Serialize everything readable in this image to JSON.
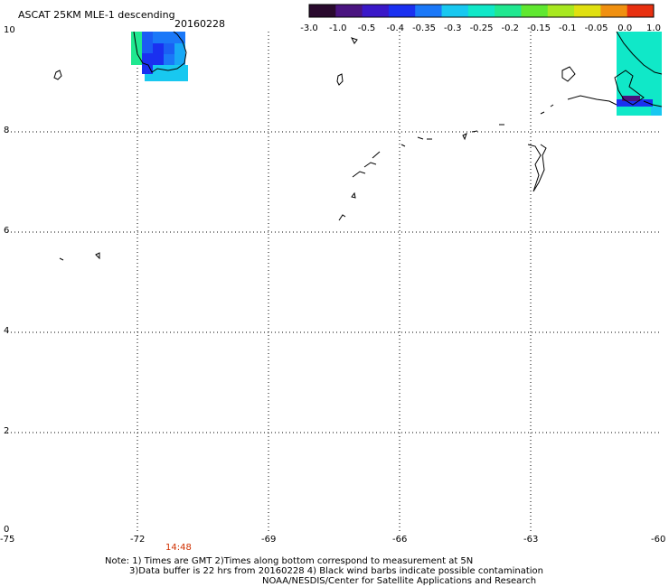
{
  "header": {
    "title": "ASCAT 25KM MLE-1 descending",
    "date": "20160228"
  },
  "colorbar": {
    "labels": [
      "-3.0",
      "-1.0",
      "-0.5",
      "-0.4",
      "-0.35",
      "-0.3",
      "-0.25",
      "-0.2",
      "-0.15",
      "-0.1",
      "-0.05",
      "0.0",
      "1.0"
    ],
    "colors": [
      "#2a0a2e",
      "#4a1480",
      "#3a18c8",
      "#1a30f0",
      "#1a78f8",
      "#18c8f0",
      "#10e8c8",
      "#20e890",
      "#60e830",
      "#a8e820",
      "#e0e010",
      "#f09010",
      "#e83010"
    ]
  },
  "axes": {
    "x_ticks": [
      "-75",
      "-72",
      "-69",
      "-66",
      "-63",
      "-60"
    ],
    "y_ticks": [
      "0",
      "2",
      "4",
      "6",
      "8",
      "10"
    ]
  },
  "time_marker": {
    "label": "14:48",
    "color": "#d03000"
  },
  "notes": {
    "line1": "Note: 1) Times are GMT 2)Times along bottom correspond to measurement at 5N",
    "line2": "3)Data buffer is 22 hrs from 20160228 4) Black wind barbs indicate possible contamination",
    "line3": "NOAA/NESDIS/Center for Satellite Applications and Research"
  }
}
